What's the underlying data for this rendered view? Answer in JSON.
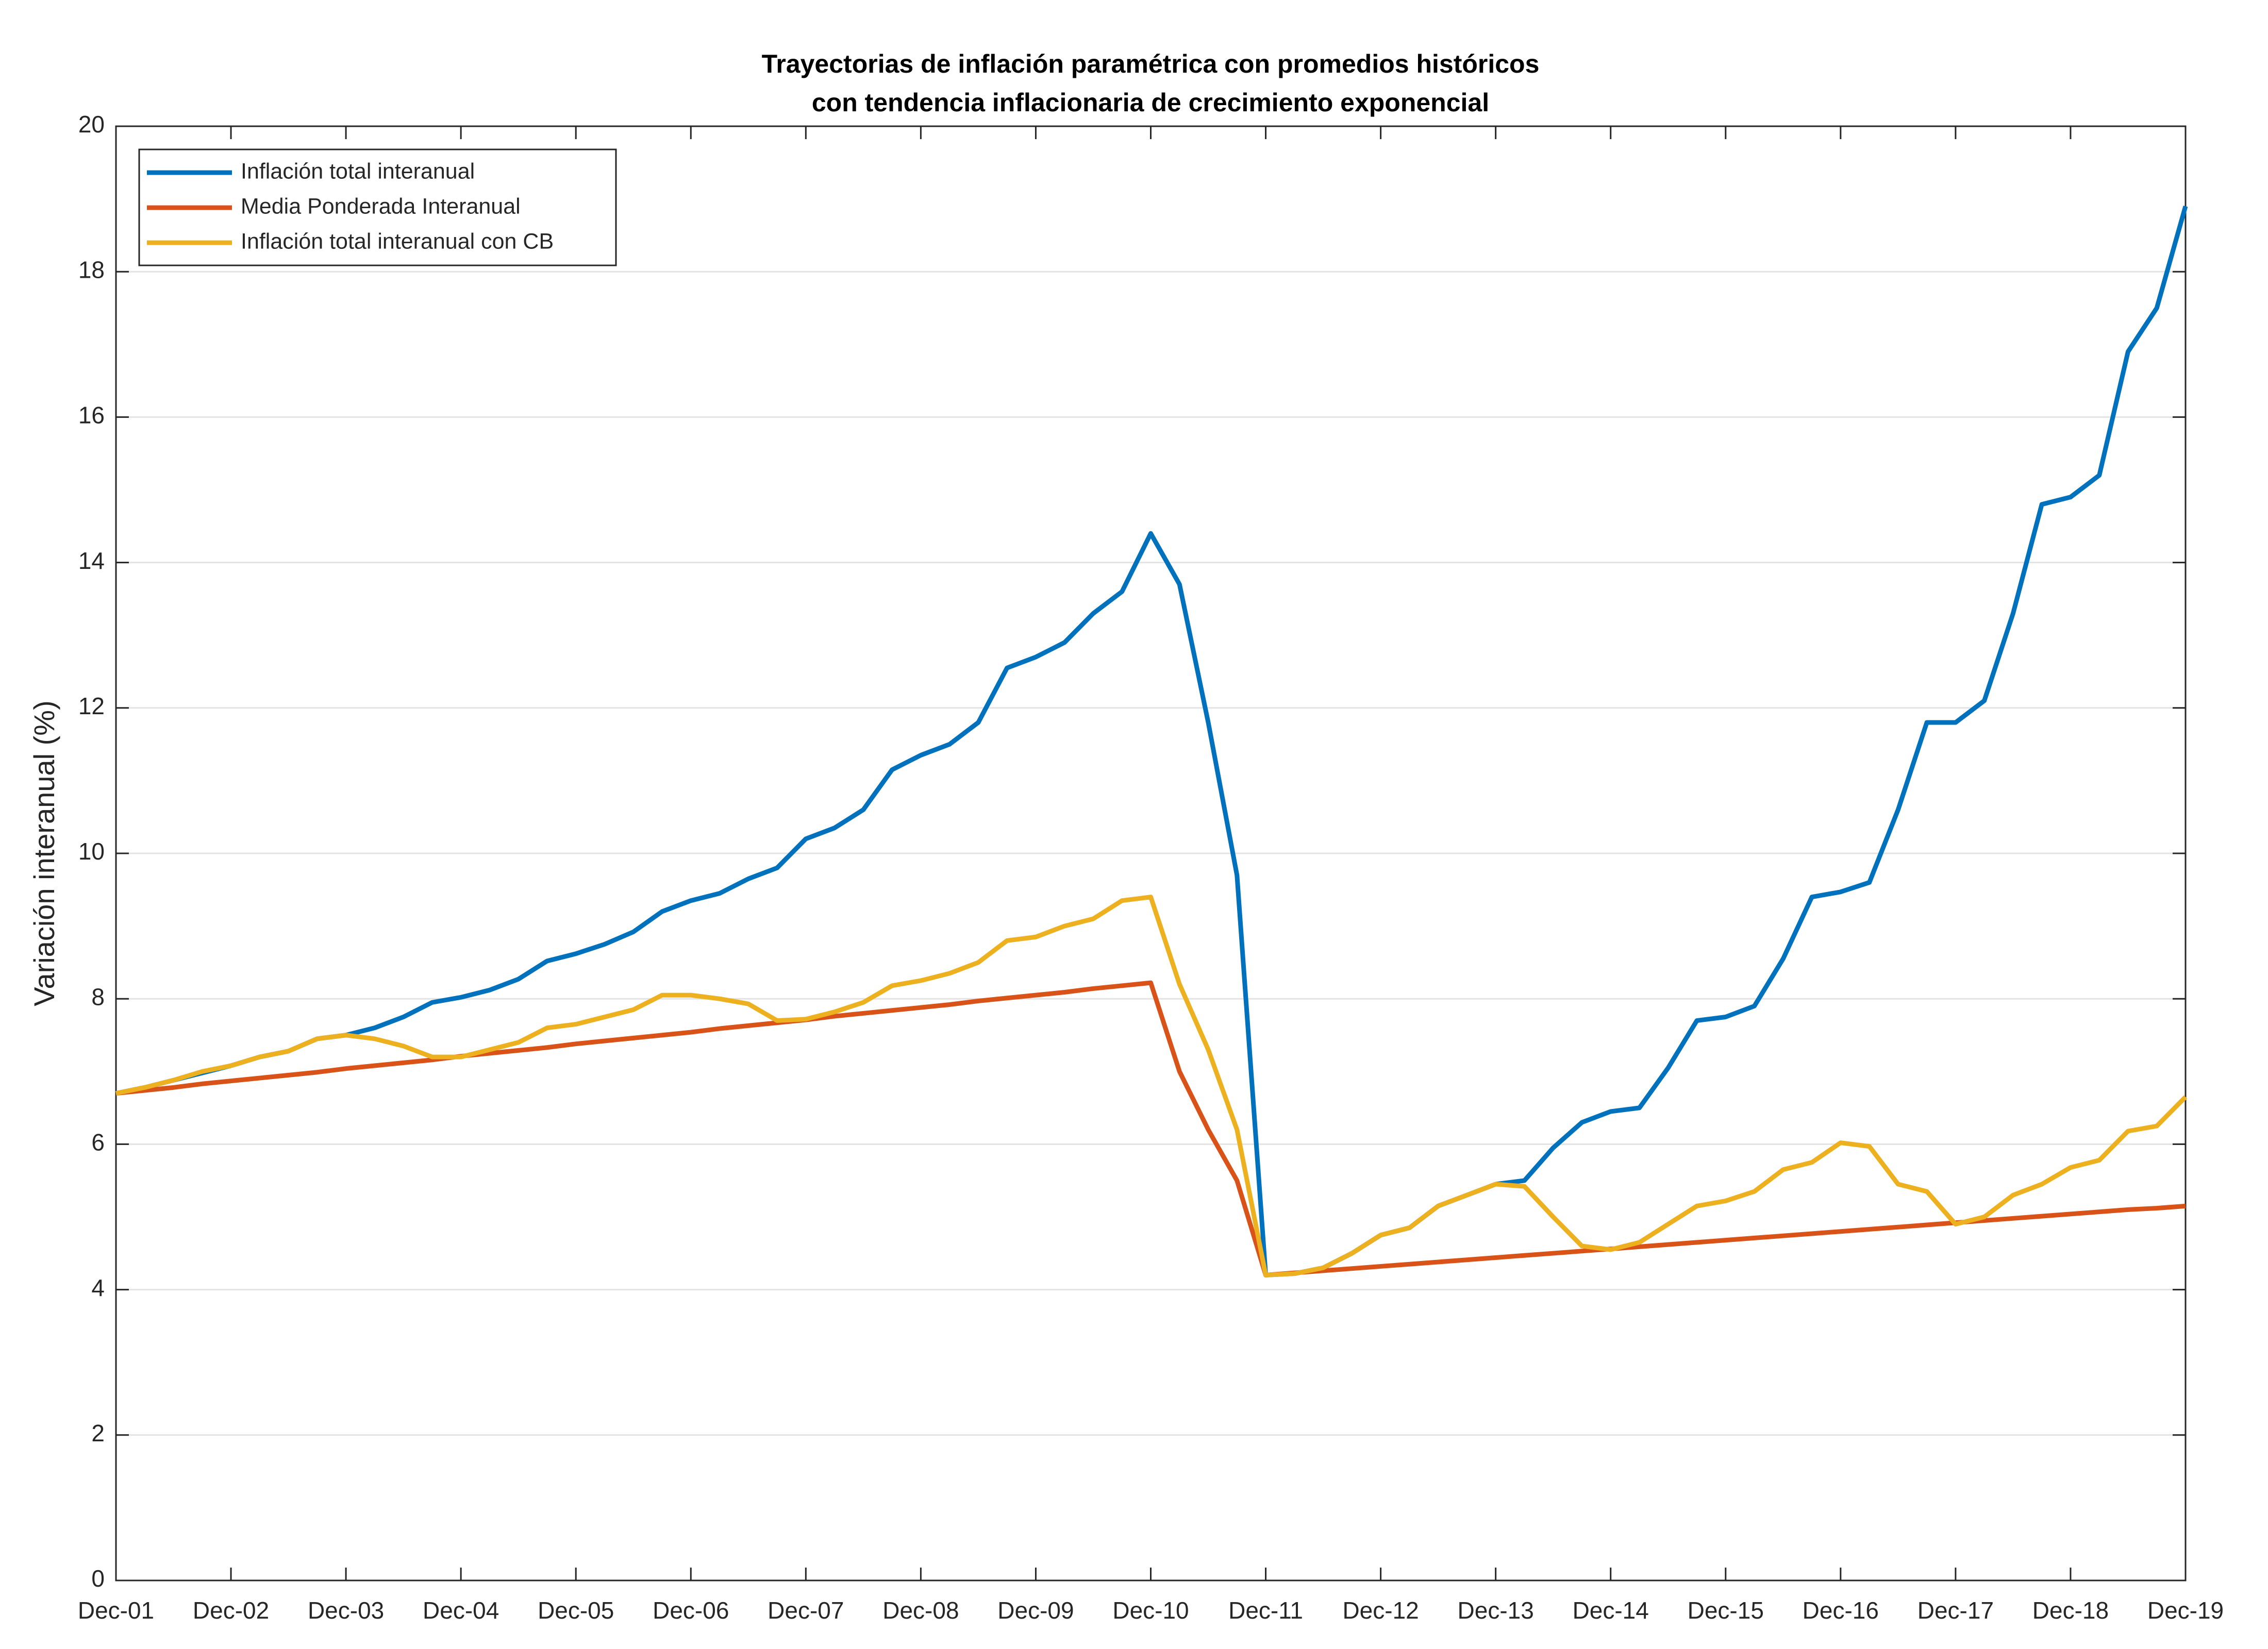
{
  "chart_data": {
    "type": "line",
    "title": [
      "Trayectorias de inflación paramétrica con promedios históricos",
      "con tendencia inflacionaria de crecimiento exponencial"
    ],
    "y_label": "Variación interanual (%)",
    "categories": [
      "Dec-01",
      null,
      null,
      null,
      "Dec-02",
      null,
      null,
      null,
      "Dec-03",
      null,
      null,
      null,
      "Dec-04",
      null,
      null,
      null,
      "Dec-05",
      null,
      null,
      null,
      "Dec-06",
      null,
      null,
      null,
      "Dec-07",
      null,
      null,
      null,
      "Dec-08",
      null,
      null,
      null,
      "Dec-09",
      null,
      null,
      null,
      "Dec-10",
      null,
      null,
      null,
      "Dec-11",
      null,
      null,
      null,
      "Dec-12",
      null,
      null,
      null,
      "Dec-13",
      null,
      null,
      null,
      "Dec-14",
      null,
      null,
      null,
      "Dec-15",
      null,
      null,
      null,
      "Dec-16",
      null,
      null,
      null,
      "Dec-17",
      null,
      null,
      null,
      "Dec-18",
      null,
      null,
      null,
      "Dec-19"
    ],
    "series": [
      {
        "name": "Inflación total interanual",
        "color": "#0072BD",
        "values": [
          6.7,
          6.78,
          6.88,
          6.98,
          7.08,
          7.2,
          7.28,
          7.45,
          7.5,
          7.6,
          7.75,
          7.95,
          8.02,
          8.12,
          8.27,
          8.52,
          8.62,
          8.75,
          8.92,
          9.2,
          9.35,
          9.45,
          9.65,
          9.8,
          10.2,
          10.35,
          10.6,
          11.15,
          11.35,
          11.5,
          11.8,
          12.55,
          12.7,
          12.9,
          13.3,
          13.6,
          14.4,
          13.7,
          11.8,
          9.7,
          4.2,
          4.22,
          4.3,
          4.5,
          4.75,
          4.85,
          5.15,
          5.3,
          5.45,
          5.5,
          5.95,
          6.3,
          6.45,
          6.5,
          7.05,
          7.7,
          7.75,
          7.9,
          8.55,
          9.4,
          9.47,
          9.6,
          10.6,
          11.8,
          11.8,
          12.1,
          13.3,
          14.8,
          14.9,
          15.2,
          16.9,
          17.5,
          18.9
        ]
      },
      {
        "name": "Media Ponderada Interanual",
        "color": "#D95319",
        "values": [
          6.7,
          6.74,
          6.78,
          6.83,
          6.87,
          6.91,
          6.95,
          6.99,
          7.04,
          7.08,
          7.12,
          7.16,
          7.21,
          7.25,
          7.29,
          7.33,
          7.38,
          7.42,
          7.46,
          7.5,
          7.54,
          7.59,
          7.63,
          7.67,
          7.71,
          7.76,
          7.8,
          7.84,
          7.88,
          7.92,
          7.97,
          8.01,
          8.05,
          8.09,
          8.14,
          8.18,
          8.22,
          7.0,
          6.2,
          5.5,
          4.2,
          4.23,
          4.26,
          4.29,
          4.32,
          4.35,
          4.38,
          4.41,
          4.44,
          4.47,
          4.5,
          4.53,
          4.56,
          4.59,
          4.62,
          4.65,
          4.68,
          4.71,
          4.74,
          4.77,
          4.8,
          4.83,
          4.86,
          4.89,
          4.92,
          4.95,
          4.98,
          5.01,
          5.04,
          5.07,
          5.1,
          5.12,
          5.15
        ]
      },
      {
        "name": "Inflación total interanual con CB",
        "color": "#EDB120",
        "values": [
          6.7,
          6.78,
          6.88,
          7.0,
          7.08,
          7.2,
          7.28,
          7.45,
          7.5,
          7.45,
          7.35,
          7.2,
          7.2,
          7.3,
          7.4,
          7.6,
          7.65,
          7.75,
          7.85,
          8.05,
          8.05,
          8.0,
          7.93,
          7.7,
          7.72,
          7.82,
          7.95,
          8.18,
          8.25,
          8.35,
          8.5,
          8.8,
          8.85,
          9.0,
          9.1,
          9.35,
          9.4,
          8.2,
          7.3,
          6.2,
          4.2,
          4.22,
          4.3,
          4.5,
          4.75,
          4.85,
          5.15,
          5.3,
          5.45,
          5.42,
          5.0,
          4.6,
          4.55,
          4.65,
          4.9,
          5.15,
          5.22,
          5.35,
          5.65,
          5.75,
          6.02,
          5.97,
          5.45,
          5.35,
          4.9,
          5.0,
          5.3,
          5.45,
          5.68,
          5.78,
          6.18,
          6.25,
          6.65
        ]
      }
    ],
    "ylim": [
      0,
      20
    ],
    "yticks": [
      0,
      2,
      4,
      6,
      8,
      10,
      12,
      14,
      16,
      18,
      20
    ],
    "grid": true,
    "legend": "upper left"
  }
}
